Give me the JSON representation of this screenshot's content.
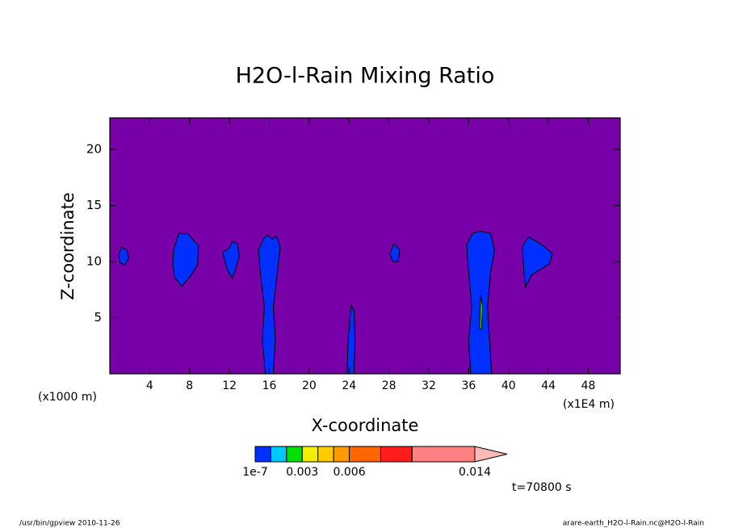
{
  "chart_data": {
    "type": "contour",
    "title": "H2O-l-Rain Mixing Ratio",
    "x_label": "X-coordinate",
    "y_label": "Z-coordinate",
    "x_unit_left": "(x1000 m)",
    "x_unit_right": "(x1E4 m)",
    "time_label": "t=70800 s",
    "footer_left": "/usr/bin/gpview   2010-11-26",
    "footer_right": "arare-earth_H2O-l-Rain.nc@H2O-l-Rain",
    "xlim": [
      0,
      51.2
    ],
    "ylim": [
      0,
      22.8
    ],
    "xticks": [
      4,
      8,
      12,
      16,
      20,
      24,
      28,
      32,
      36,
      40,
      44,
      48
    ],
    "yticks": [
      5,
      10,
      15,
      20
    ],
    "background_color": "#7800a8",
    "colorbar": {
      "levels": [
        1e-07,
        0.001,
        0.002,
        0.003,
        0.004,
        0.005,
        0.006,
        0.008,
        0.01,
        0.014
      ],
      "colors": [
        "#0030ff",
        "#00c8ff",
        "#00e000",
        "#f0f000",
        "#ffcc00",
        "#ff9900",
        "#ff6600",
        "#ff1c1c",
        "#ff8080"
      ],
      "extend_color": "#ffb8b8",
      "ticks": [
        {
          "value": 1e-07,
          "label": "1e-7"
        },
        0.003,
        0.006,
        0.014
      ]
    },
    "regions": [
      {
        "level": 1e-07,
        "x": [
          0.9,
          1.2,
          1.7,
          1.9,
          1.5,
          1.0
        ],
        "y": [
          10.6,
          11.3,
          11.0,
          10.3,
          9.7,
          9.9
        ]
      },
      {
        "level": 1e-07,
        "x": [
          6.4,
          6.9,
          7.8,
          8.9,
          8.8,
          8.0,
          7.2,
          6.5,
          6.3
        ],
        "y": [
          11.0,
          12.5,
          12.5,
          11.4,
          9.7,
          8.6,
          7.8,
          8.6,
          9.8
        ]
      },
      {
        "level": 1e-07,
        "x": [
          11.3,
          12.0,
          12.3,
          12.8,
          13.0,
          12.6,
          12.3,
          11.8
        ],
        "y": [
          10.8,
          11.2,
          11.8,
          11.6,
          10.5,
          9.3,
          8.5,
          9.2
        ]
      },
      {
        "level": 1e-07,
        "x": [
          15.6,
          15.3,
          15.5,
          15.1,
          14.9,
          15.4,
          15.8,
          16.3,
          16.7,
          17.1,
          16.8,
          16.4,
          16.6,
          16.4
        ],
        "y": [
          0,
          3,
          6,
          9,
          11,
          12,
          12.4,
          12,
          12.3,
          11.3,
          9,
          6,
          3,
          0
        ]
      },
      {
        "level": 1e-07,
        "x": [
          23.8,
          23.9,
          24.2,
          24.5,
          24.6,
          24.5
        ],
        "y": [
          0,
          3,
          6.1,
          5.6,
          3,
          0
        ]
      },
      {
        "level": 1e-07,
        "x": [
          28.1,
          28.5,
          29.1,
          28.9,
          28.4
        ],
        "y": [
          10.7,
          11.6,
          11.0,
          10.0,
          10.0
        ]
      },
      {
        "level": 1e-07,
        "x": [
          36.2,
          36.0,
          36.3,
          36.0,
          35.8,
          36.4,
          37.2,
          38.2,
          38.6,
          38.2,
          37.9,
          38.1,
          38.3
        ],
        "y": [
          0,
          3,
          6,
          9,
          11.5,
          12.5,
          12.7,
          12.5,
          11,
          9,
          6,
          3,
          0
        ]
      },
      {
        "level": 1e-07,
        "x": [
          41.4,
          42.0,
          42.8,
          43.5,
          44.4,
          44.1,
          43.2,
          42.3,
          41.7,
          41.5
        ],
        "y": [
          11.4,
          12.2,
          11.8,
          11.4,
          10.7,
          9.8,
          9.3,
          8.8,
          7.7,
          9.5
        ]
      },
      {
        "level": 0.002,
        "x": [
          37.1,
          37.2,
          37.4,
          37.3
        ],
        "y": [
          4,
          7,
          6,
          4
        ]
      }
    ]
  }
}
